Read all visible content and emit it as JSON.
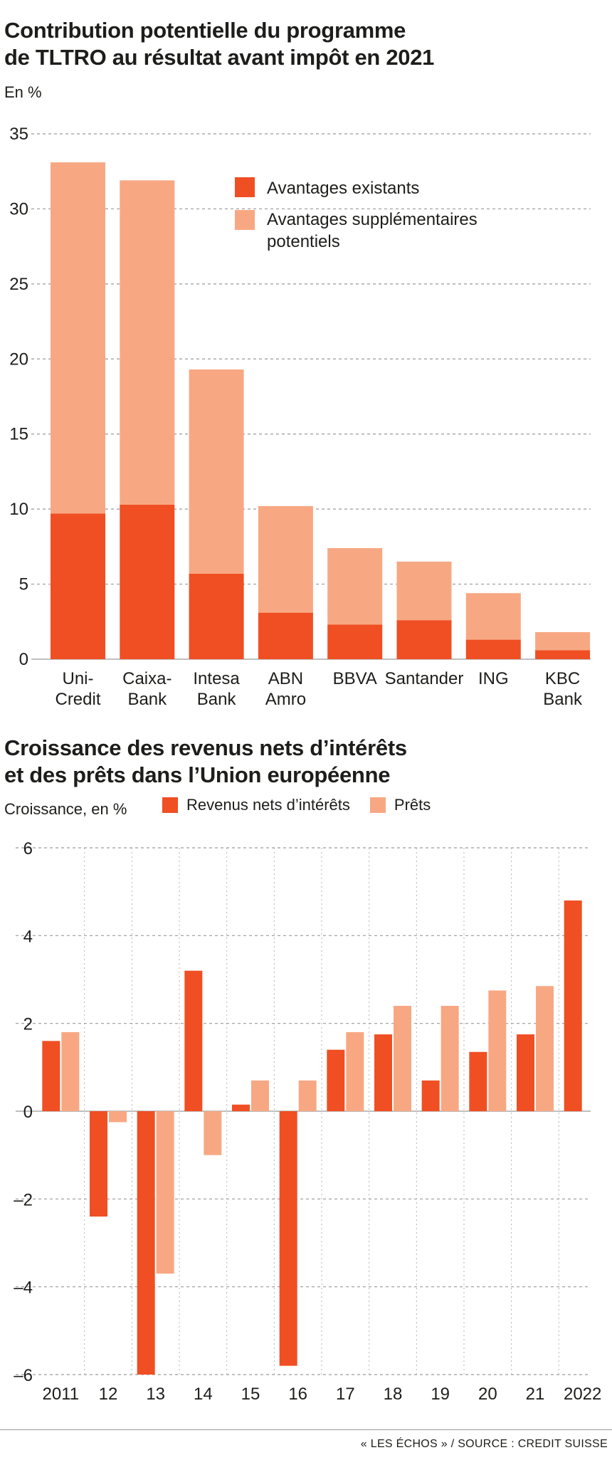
{
  "colors": {
    "dark": "#ef4f23",
    "light": "#f7a883",
    "grid": "#9a9a9a",
    "text": "#1d1d1b"
  },
  "chart1": {
    "title_line1": "Contribution potentielle du programme",
    "title_line2": "de TLTRO au résultat avant impôt en 2021",
    "unit": "En %",
    "legend": {
      "existing": "Avantages existants",
      "additional_line1": "Avantages supplémentaires",
      "additional_line2": "potentiels"
    }
  },
  "chart2": {
    "title_line1": "Croissance des revenus nets d’intérêts",
    "title_line2": "et des prêts dans l’Union européenne",
    "unit": "Croissance, en %",
    "legend": {
      "nii": "Revenus nets d’intérêts",
      "loans": "Prêts"
    }
  },
  "source": "« LES ÉCHOS » / SOURCE : CREDIT SUISSE",
  "chart_data": [
    {
      "type": "bar",
      "stacked": true,
      "title": "Contribution potentielle du programme de TLTRO au résultat avant impôt en 2021",
      "ylabel": "En %",
      "ylim": [
        0,
        35
      ],
      "yticks": [
        0,
        5,
        10,
        15,
        20,
        25,
        30,
        35
      ],
      "grid": true,
      "legend_position": "top-right",
      "categories": [
        [
          "Uni-",
          "Credit"
        ],
        [
          "Caixa-",
          "Bank"
        ],
        [
          "Intesa",
          "Bank"
        ],
        [
          "ABN",
          "Amro"
        ],
        [
          "BBVA"
        ],
        [
          "Santander"
        ],
        [
          "ING"
        ],
        [
          "KBC",
          "Bank"
        ]
      ],
      "series": [
        {
          "name": "Avantages existants",
          "values": [
            9.7,
            10.3,
            5.7,
            3.1,
            2.3,
            2.6,
            1.3,
            0.6
          ]
        },
        {
          "name": "Avantages supplémentaires potentiels",
          "values": [
            23.4,
            21.6,
            13.6,
            7.1,
            5.1,
            3.9,
            3.1,
            1.2
          ]
        }
      ]
    },
    {
      "type": "bar",
      "title": "Croissance des revenus nets d’intérêts et des prêts dans l’Union européenne",
      "ylabel": "Croissance, en %",
      "ylim": [
        -6,
        6
      ],
      "yticks": [
        -6,
        -4,
        -2,
        0,
        2,
        4,
        6
      ],
      "ytick_labels": [
        "–6",
        "–4",
        "–2",
        "0",
        "2",
        "4",
        "6"
      ],
      "grid": true,
      "legend_position": "top",
      "categories": [
        "2011",
        "12",
        "13",
        "14",
        "15",
        "16",
        "17",
        "18",
        "19",
        "20",
        "21",
        "2022"
      ],
      "series": [
        {
          "name": "Revenus nets d’intérêts",
          "values": [
            1.6,
            -2.4,
            -6.0,
            3.2,
            0.15,
            -5.8,
            1.4,
            1.75,
            0.7,
            1.35,
            1.75,
            4.8
          ]
        },
        {
          "name": "Prêts",
          "values": [
            1.8,
            -0.25,
            -3.7,
            -1.0,
            0.7,
            0.7,
            1.8,
            2.4,
            2.4,
            2.75,
            2.85,
            null
          ]
        }
      ]
    }
  ]
}
